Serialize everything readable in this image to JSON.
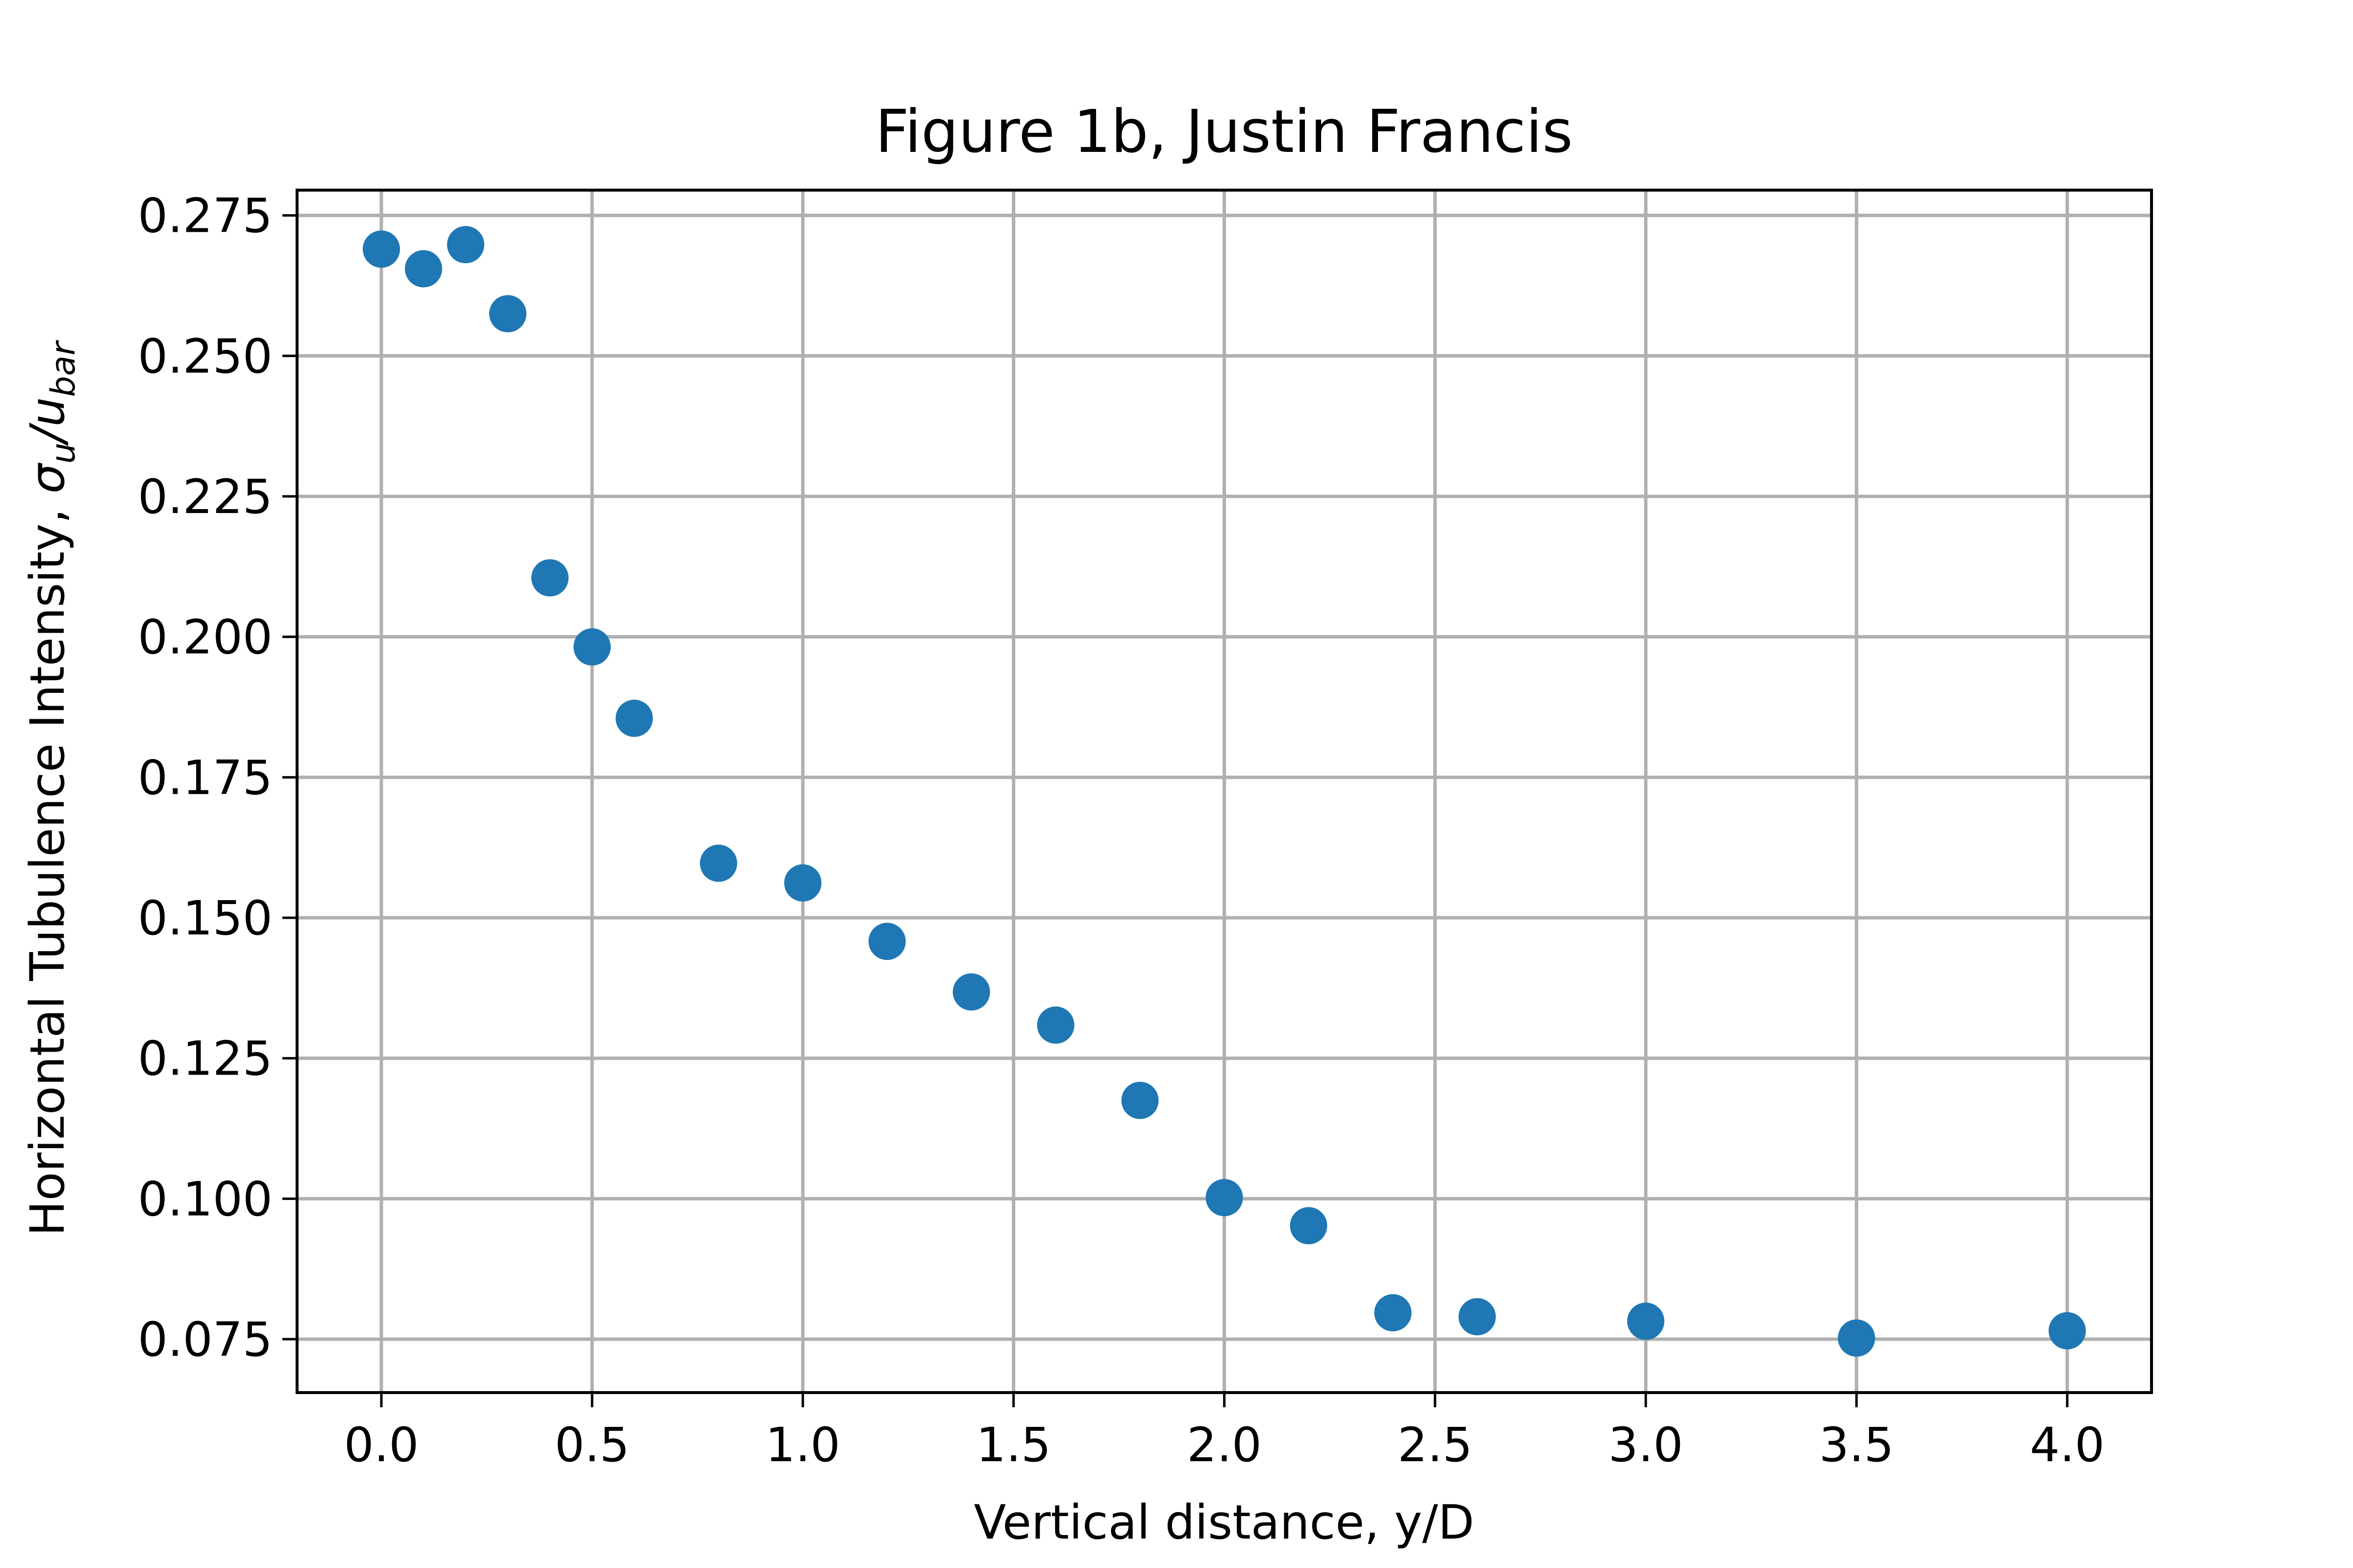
{
  "chart_data": {
    "type": "scatter",
    "title": "Figure 1b, Justin Francis",
    "xlabel": "Vertical distance, y/D",
    "ylabel": {
      "main": "Horizontal Tubulence Intensity, ",
      "sigma": "σ",
      "sigma_sub": "u",
      "slash": "/",
      "u": "u",
      "u_sub": "bar"
    },
    "xlim": [
      -0.2,
      4.2
    ],
    "ylim": [
      0.0655,
      0.2795
    ],
    "x_ticks": [
      0.0,
      0.5,
      1.0,
      1.5,
      2.0,
      2.5,
      3.0,
      3.5,
      4.0
    ],
    "x_tick_labels": [
      "0.0",
      "0.5",
      "1.0",
      "1.5",
      "2.0",
      "2.5",
      "3.0",
      "3.5",
      "4.0"
    ],
    "y_ticks": [
      0.075,
      0.1,
      0.125,
      0.15,
      0.175,
      0.2,
      0.225,
      0.25,
      0.275
    ],
    "y_tick_labels": [
      "0.075",
      "0.100",
      "0.125",
      "0.150",
      "0.175",
      "0.200",
      "0.225",
      "0.250",
      "0.275"
    ],
    "grid": true,
    "marker_color": "#1f77b4",
    "x": [
      0.0,
      0.1,
      0.2,
      0.3,
      0.4,
      0.5,
      0.6,
      0.8,
      1.0,
      1.2,
      1.4,
      1.6,
      1.8,
      2.0,
      2.2,
      2.4,
      2.6,
      3.0,
      3.5,
      4.0
    ],
    "y": [
      0.269,
      0.2655,
      0.2698,
      0.2575,
      0.2105,
      0.1982,
      0.1855,
      0.1597,
      0.1562,
      0.1458,
      0.1368,
      0.1309,
      0.1175,
      0.1002,
      0.0952,
      0.0797,
      0.079,
      0.0782,
      0.0752,
      0.0765
    ]
  }
}
